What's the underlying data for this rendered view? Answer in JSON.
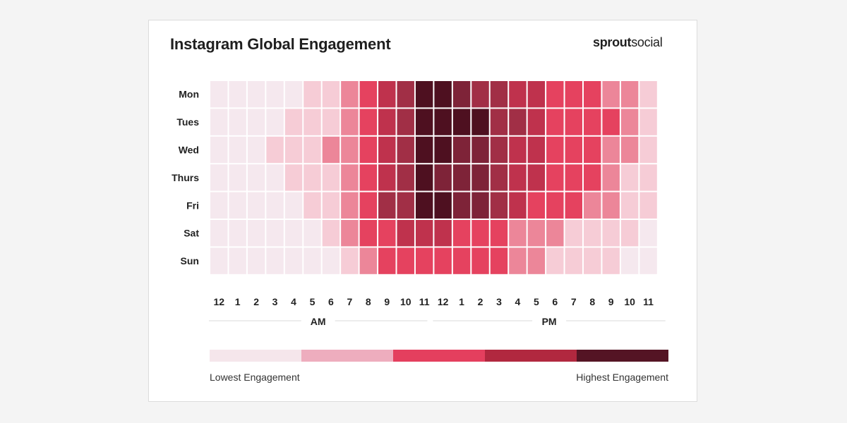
{
  "header": {
    "title": "Instagram Global Engagement"
  },
  "brand": {
    "name_bold": "sprout",
    "name_regular": "social"
  },
  "legend": {
    "low_label": "Lowest Engagement",
    "high_label": "Highest Engagement",
    "colors": [
      "#f5e6eb",
      "#eeadbe",
      "#e43f5e",
      "#b1283f",
      "#541424"
    ]
  },
  "chart_data": {
    "type": "heatmap",
    "title": "Instagram Global Engagement",
    "rows": [
      "Mon",
      "Tues",
      "Wed",
      "Thurs",
      "Fri",
      "Sat",
      "Sun"
    ],
    "columns": [
      "12",
      "1",
      "2",
      "3",
      "4",
      "5",
      "6",
      "7",
      "8",
      "9",
      "10",
      "11",
      "12",
      "1",
      "2",
      "3",
      "4",
      "5",
      "6",
      "7",
      "8",
      "9",
      "10",
      "11"
    ],
    "column_groups": [
      {
        "label": "AM",
        "from": 0,
        "to": 11
      },
      {
        "label": "PM",
        "from": 12,
        "to": 23
      }
    ],
    "scale": {
      "min": 0,
      "max": 9,
      "colors": [
        "#f5e8ee",
        "#f3e5ea",
        "#f6ccd6",
        "#f5bfcb",
        "#ec8699",
        "#e5425f",
        "#bf324d",
        "#a12f46",
        "#7e2338",
        "#4e1020"
      ]
    },
    "values": [
      [
        0,
        0,
        0,
        0,
        0,
        2,
        2,
        4,
        5,
        6,
        7,
        9,
        9,
        8,
        7,
        7,
        6,
        6,
        5,
        5,
        5,
        4,
        4,
        2
      ],
      [
        0,
        0,
        0,
        0,
        2,
        2,
        2,
        4,
        5,
        6,
        7,
        9,
        9,
        9,
        9,
        7,
        7,
        6,
        5,
        5,
        5,
        5,
        4,
        2
      ],
      [
        0,
        0,
        0,
        2,
        2,
        2,
        4,
        4,
        5,
        6,
        7,
        9,
        9,
        8,
        8,
        7,
        6,
        6,
        5,
        5,
        5,
        4,
        4,
        2
      ],
      [
        0,
        0,
        0,
        0,
        2,
        2,
        2,
        4,
        5,
        6,
        7,
        9,
        8,
        8,
        8,
        7,
        6,
        6,
        5,
        5,
        5,
        4,
        2,
        2
      ],
      [
        0,
        0,
        0,
        0,
        0,
        2,
        2,
        4,
        5,
        7,
        7,
        9,
        9,
        8,
        8,
        7,
        6,
        5,
        5,
        5,
        4,
        4,
        2,
        2
      ],
      [
        0,
        0,
        0,
        0,
        0,
        0,
        2,
        4,
        5,
        5,
        6,
        6,
        6,
        5,
        5,
        5,
        4,
        4,
        4,
        2,
        2,
        2,
        2,
        0
      ],
      [
        0,
        0,
        0,
        0,
        0,
        0,
        0,
        2,
        4,
        5,
        5,
        5,
        5,
        5,
        5,
        5,
        4,
        4,
        2,
        2,
        2,
        2,
        0,
        0
      ]
    ]
  }
}
